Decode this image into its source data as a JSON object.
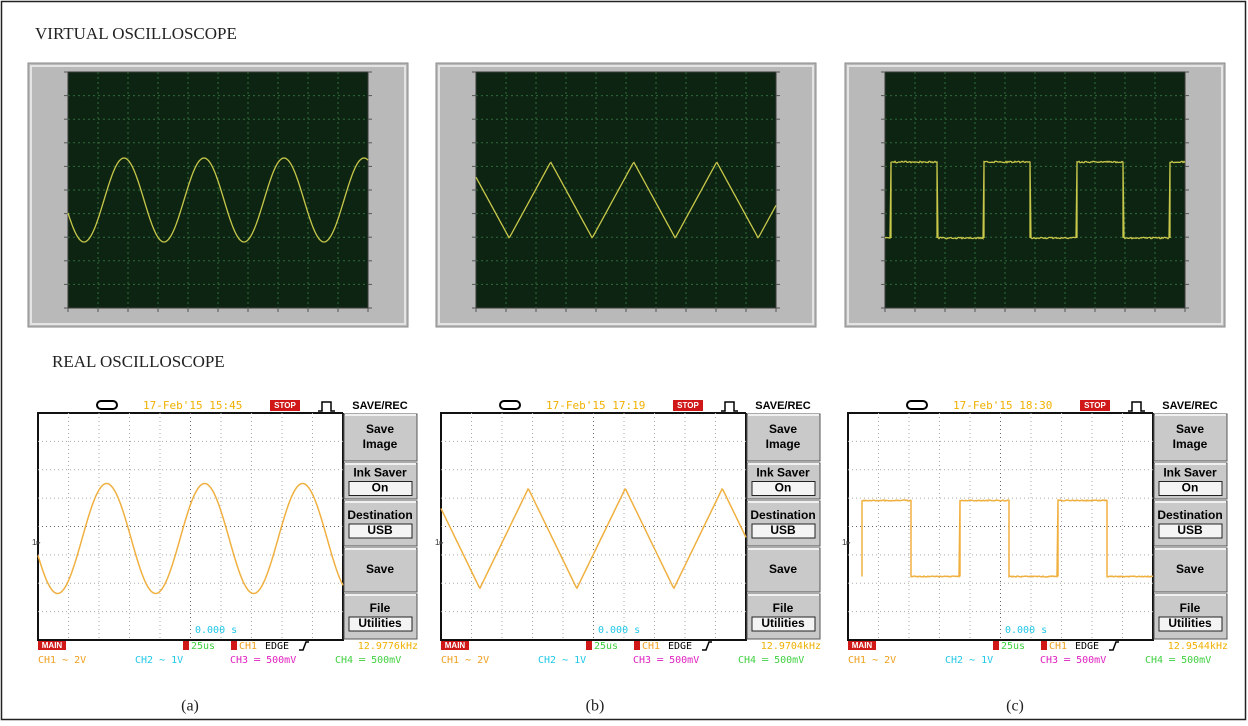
{
  "title_virtual": "VIRTUAL OSCILLOSCOPE",
  "title_real": "REAL OSCILLOSCOPE",
  "real_panels": [
    {
      "timestamp": "17-Feb'15 15:45",
      "status": "STOP",
      "menu_title": "SAVE/REC",
      "menu": [
        [
          "Save",
          "Image"
        ],
        [
          "Ink Saver",
          "On"
        ],
        [
          "Destination",
          "USB"
        ],
        [
          "Save"
        ],
        [
          "File",
          "Utilities"
        ]
      ],
      "time_offset": "0.000 s",
      "main": "MAIN",
      "timebase": "25us",
      "trigger_source": "CH1",
      "trigger_mode": "EDGE",
      "frequency": "12.9776kHz",
      "channels": [
        "CH1 ∼ 2V",
        "CH2 ∼ 1V",
        "CH3 ═ 500mV",
        "CH4 ═ 500mV"
      ]
    },
    {
      "timestamp": "17-Feb'15 17:19",
      "status": "STOP",
      "menu_title": "SAVE/REC",
      "menu": [
        [
          "Save",
          "Image"
        ],
        [
          "Ink Saver",
          "On"
        ],
        [
          "Destination",
          "USB"
        ],
        [
          "Save"
        ],
        [
          "File",
          "Utilities"
        ]
      ],
      "time_offset": "0.000 s",
      "main": "MAIN",
      "timebase": "25us",
      "trigger_source": "CH1",
      "trigger_mode": "EDGE",
      "frequency": "12.9704kHz",
      "channels": [
        "CH1 ∼ 2V",
        "CH2 ∼ 1V",
        "CH3 ═ 500mV",
        "CH4 ═ 500mV"
      ]
    },
    {
      "timestamp": "17-Feb'15 18:30",
      "status": "STOP",
      "menu_title": "SAVE/REC",
      "menu": [
        [
          "Save",
          "Image"
        ],
        [
          "Ink Saver",
          "On"
        ],
        [
          "Destination",
          "USB"
        ],
        [
          "Save"
        ],
        [
          "File",
          "Utilities"
        ]
      ],
      "time_offset": "0.000 s",
      "main": "MAIN",
      "timebase": "25us",
      "trigger_source": "CH1",
      "trigger_mode": "EDGE",
      "frequency": "12.9544kHz",
      "channels": [
        "CH1 ∼ 2V",
        "CH2 ∼ 1V",
        "CH3 ═ 500mV",
        "CH4 ═ 500mV"
      ]
    }
  ],
  "captions": [
    "(a)",
    "(b)",
    "(c)"
  ]
}
